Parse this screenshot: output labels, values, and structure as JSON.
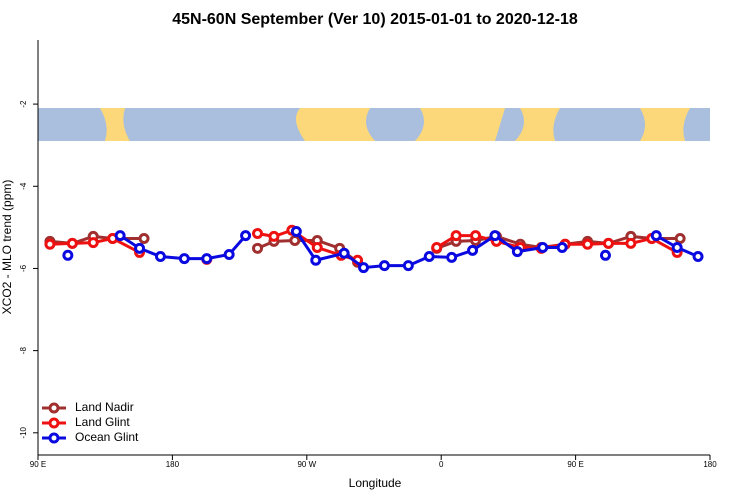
{
  "chart_data": {
    "type": "line",
    "title": "45N-60N September (Ver 10)   2015-01-01 to 2020-12-18",
    "x_label": "Longitude",
    "y_label": "XCO2 - MLO trend (ppm)",
    "xlim": [
      90,
      540
    ],
    "xticks": [
      {
        "value": 90,
        "label": "90 E"
      },
      180,
      {
        "value": 270,
        "label": "90 W"
      },
      {
        "value": 360,
        "label": "0"
      },
      {
        "value": 450,
        "label": "90 E"
      },
      {
        "value": 540,
        "label": "180"
      }
    ],
    "ylim": [
      -10.54,
      -0.44
    ],
    "yticks": [
      -2,
      -4,
      -6,
      -8,
      -10
    ],
    "legend": "bottom-left",
    "series": [
      {
        "name": "Land Nadir",
        "color": "#a0302f",
        "x": [
          98,
          113,
          127,
          140,
          161,
          null,
          237,
          248,
          262,
          277,
          292,
          304,
          null,
          357,
          370,
          383,
          397,
          413,
          427,
          443,
          458,
          472,
          487,
          501,
          520
        ],
        "values": [
          -5.34,
          -5.39,
          -5.22,
          -5.27,
          -5.27,
          null,
          -5.51,
          -5.34,
          -5.32,
          -5.32,
          -5.51,
          -5.85,
          null,
          -5.51,
          -5.34,
          -5.32,
          -5.22,
          -5.41,
          -5.49,
          -5.41,
          -5.34,
          -5.39,
          -5.22,
          -5.27,
          -5.27
        ]
      },
      {
        "name": "Land Glint",
        "color": "#ee1111",
        "x": [
          98,
          113,
          127,
          140,
          158,
          null,
          203,
          null,
          237,
          248,
          260,
          277,
          293,
          304,
          null,
          357,
          370,
          383,
          397,
          413,
          427,
          443,
          458,
          472,
          487,
          501,
          518
        ],
        "values": [
          -5.41,
          -5.39,
          -5.37,
          -5.27,
          -5.61,
          null,
          -5.78,
          null,
          -5.15,
          -5.22,
          -5.07,
          -5.49,
          -5.68,
          -5.8,
          null,
          -5.49,
          -5.2,
          -5.2,
          -5.34,
          -5.49,
          -5.51,
          -5.41,
          -5.41,
          -5.39,
          -5.39,
          -5.27,
          -5.61
        ]
      },
      {
        "name": "Ocean Glint",
        "color": "#0a0ae0",
        "x": [
          110,
          null,
          145,
          158,
          172,
          188,
          203,
          218,
          229,
          null,
          263,
          276,
          295,
          308,
          322,
          338,
          352,
          367,
          381,
          396,
          411,
          428,
          441,
          null,
          470,
          null,
          504,
          518,
          532
        ],
        "values": [
          -5.68,
          null,
          -5.2,
          -5.51,
          -5.71,
          -5.76,
          -5.76,
          -5.66,
          -5.2,
          null,
          -5.1,
          -5.8,
          -5.63,
          -5.98,
          -5.93,
          -5.93,
          -5.71,
          -5.73,
          -5.56,
          -5.2,
          -5.59,
          -5.49,
          -5.49,
          null,
          -5.68,
          null,
          -5.2,
          -5.49,
          -5.71
        ]
      }
    ]
  }
}
